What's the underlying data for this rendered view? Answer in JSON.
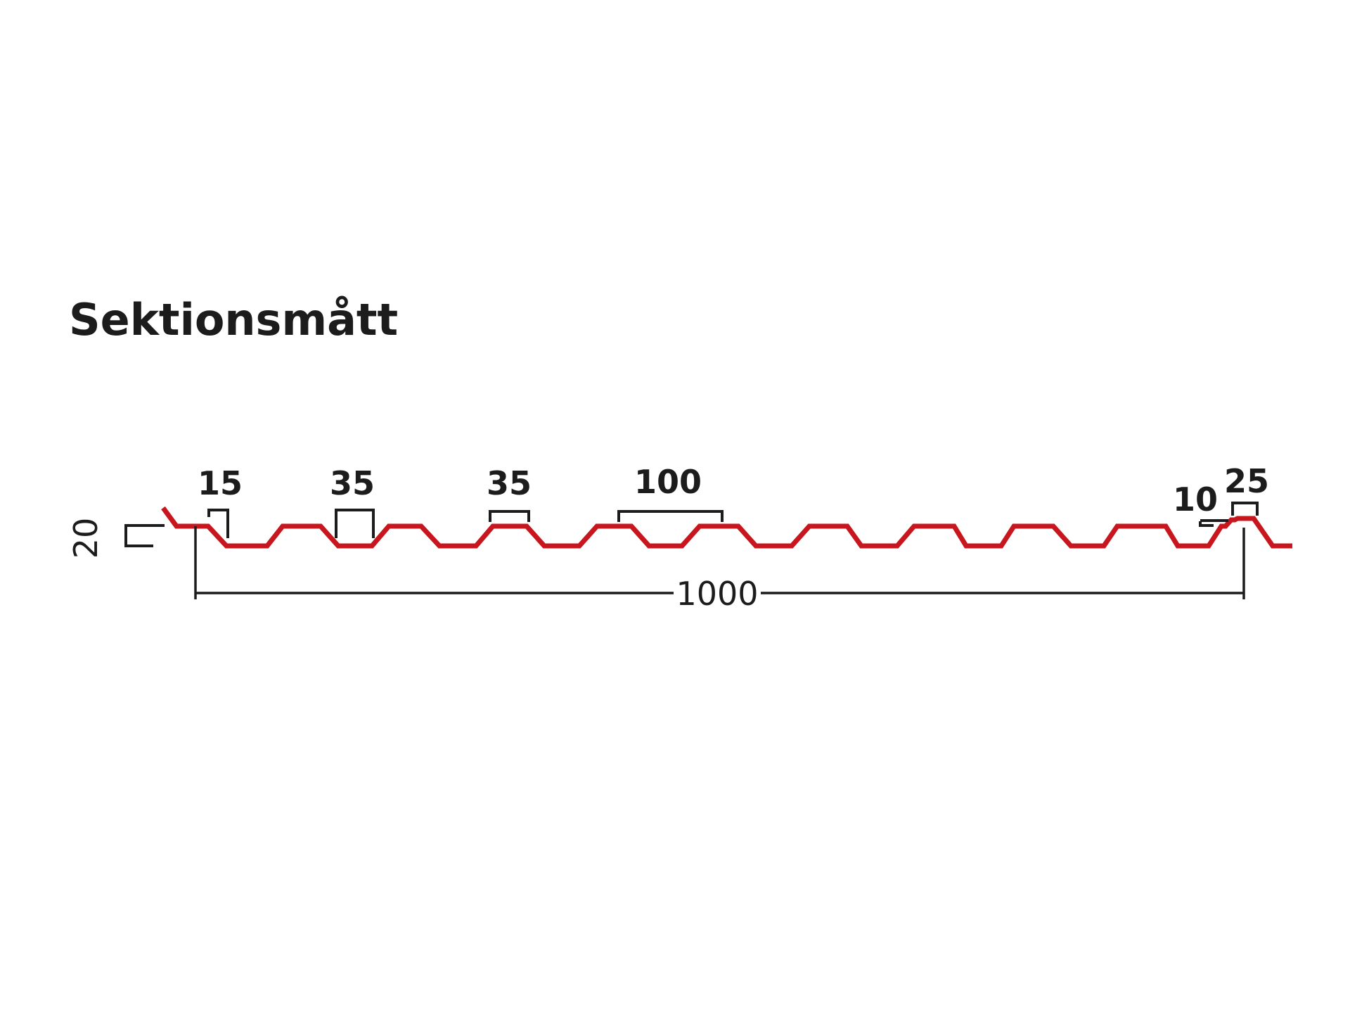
{
  "title": "Sektionsmått",
  "colors": {
    "profile": "#c8161e",
    "dimension": "#1c1c1c",
    "background": "#ffffff"
  },
  "dimensions": {
    "height": "20",
    "rib_top_left": "15",
    "valley_bottom": "35",
    "rib_top": "35",
    "pitch": "100",
    "edge_step": "10",
    "edge_top": "25",
    "cover_width": "1000"
  }
}
